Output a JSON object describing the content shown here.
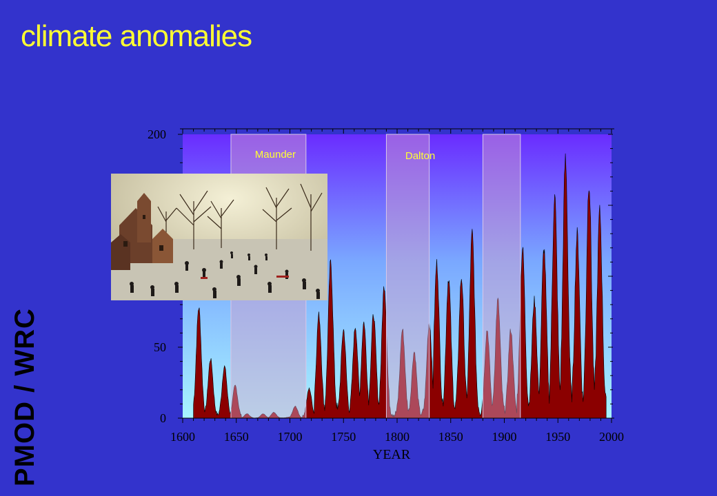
{
  "slide": {
    "title": "climate anomalies",
    "brand": "PMOD / WRC"
  },
  "colors": {
    "background": "#3333cc",
    "title": "#ffff33",
    "brand": "#000000",
    "fill": "#8b0000",
    "band": "#d4a0c8",
    "band_label": "#ffff33"
  },
  "chart_data": {
    "type": "area",
    "xlabel": "YEAR",
    "ylabel": "",
    "xlim": [
      1600,
      2000
    ],
    "ylim": [
      0,
      200
    ],
    "x_ticks": [
      1600,
      1650,
      1700,
      1750,
      1800,
      1850,
      1900,
      1950,
      2000
    ],
    "y_tick_labels": [
      0,
      50,
      200
    ],
    "grid": false,
    "periods": [
      {
        "name": "Maunder",
        "start": 1645,
        "end": 1715
      },
      {
        "name": "Dalton",
        "start": 1790,
        "end": 1830
      },
      {
        "name": "",
        "start": 1880,
        "end": 1915
      }
    ],
    "cycle_maxima": [
      {
        "year": 1615,
        "value": 75
      },
      {
        "year": 1626,
        "value": 40
      },
      {
        "year": 1639,
        "value": 35
      },
      {
        "year": 1649,
        "value": 22
      },
      {
        "year": 1660,
        "value": 3
      },
      {
        "year": 1675,
        "value": 3
      },
      {
        "year": 1685,
        "value": 4
      },
      {
        "year": 1705,
        "value": 8
      },
      {
        "year": 1718,
        "value": 20
      },
      {
        "year": 1727,
        "value": 70
      },
      {
        "year": 1738,
        "value": 105
      },
      {
        "year": 1750,
        "value": 60
      },
      {
        "year": 1761,
        "value": 62
      },
      {
        "year": 1769,
        "value": 65
      },
      {
        "year": 1778,
        "value": 70
      },
      {
        "year": 1788,
        "value": 90
      },
      {
        "year": 1805,
        "value": 60
      },
      {
        "year": 1816,
        "value": 45
      },
      {
        "year": 1830,
        "value": 65
      },
      {
        "year": 1837,
        "value": 105
      },
      {
        "year": 1848,
        "value": 95
      },
      {
        "year": 1860,
        "value": 95
      },
      {
        "year": 1870,
        "value": 125
      },
      {
        "year": 1884,
        "value": 60
      },
      {
        "year": 1894,
        "value": 80
      },
      {
        "year": 1906,
        "value": 60
      },
      {
        "year": 1917,
        "value": 115
      },
      {
        "year": 1928,
        "value": 80
      },
      {
        "year": 1937,
        "value": 115
      },
      {
        "year": 1947,
        "value": 150
      },
      {
        "year": 1957,
        "value": 175
      },
      {
        "year": 1968,
        "value": 125
      },
      {
        "year": 1979,
        "value": 160
      },
      {
        "year": 1989,
        "value": 140
      }
    ]
  }
}
